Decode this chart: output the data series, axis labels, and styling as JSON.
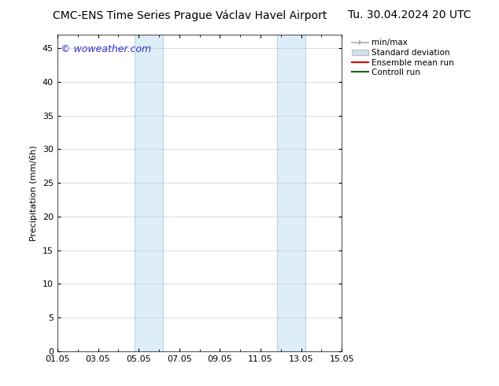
{
  "title_left": "CMC-ENS Time Series Prague Václav Havel Airport",
  "title_right": "Tu. 30.04.2024 20 UTC",
  "ylabel": "Precipitation (mm/6h)",
  "watermark": "© woweather.com",
  "xtick_labels": [
    "01.05",
    "03.05",
    "05.05",
    "07.05",
    "09.05",
    "11.05",
    "13.05",
    "15.05"
  ],
  "xtick_positions": [
    0,
    2,
    4,
    6,
    8,
    10,
    12,
    14
  ],
  "ylim": [
    0,
    47
  ],
  "ytick_positions": [
    0,
    5,
    10,
    15,
    20,
    25,
    30,
    35,
    40,
    45
  ],
  "shaded_bands": [
    {
      "x_start": 3.8,
      "x_end": 5.2
    },
    {
      "x_start": 10.8,
      "x_end": 12.2
    }
  ],
  "shaded_fill_color": "#ddeef8",
  "shaded_edge_color": "#b8d4e8",
  "background_color": "#ffffff",
  "grid_color": "#cccccc",
  "legend_entries": [
    {
      "label": "min/max",
      "color": "#aaaaaa",
      "lw": 1.2
    },
    {
      "label": "Standard deviation",
      "color": "#cce0f0",
      "lw": 8
    },
    {
      "label": "Ensemble mean run",
      "color": "#dd0000",
      "lw": 1.5
    },
    {
      "label": "Controll run",
      "color": "#006600",
      "lw": 1.5
    }
  ],
  "watermark_color": "#3333cc",
  "title_fontsize": 10,
  "axis_label_fontsize": 8,
  "tick_fontsize": 8,
  "legend_fontsize": 7.5
}
